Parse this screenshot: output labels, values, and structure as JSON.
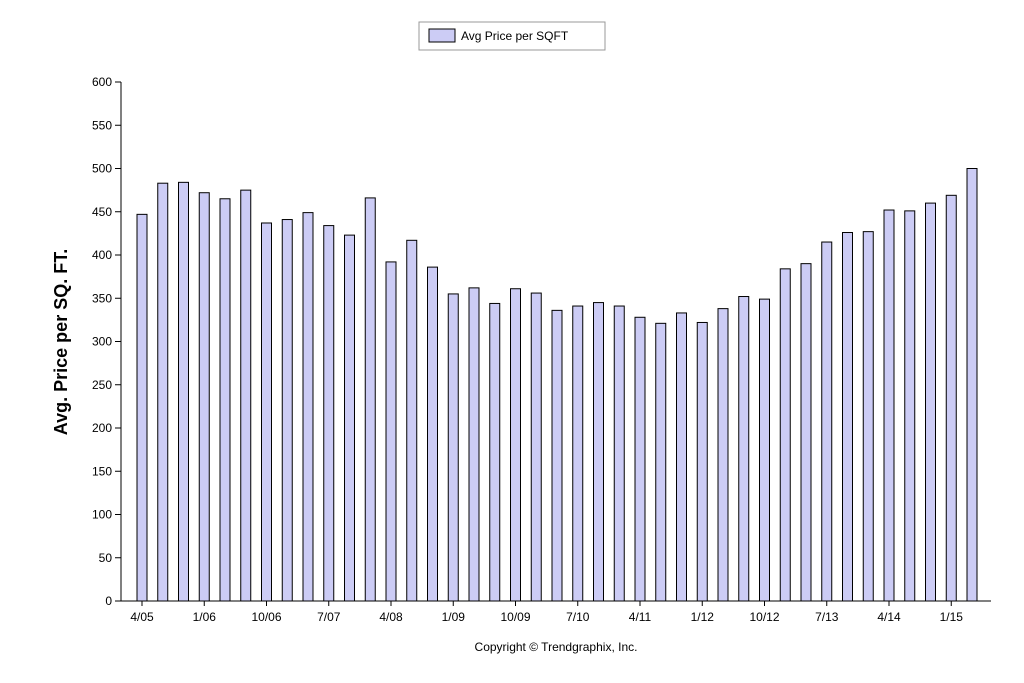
{
  "chart_data": {
    "type": "bar",
    "legend": [
      "Avg Price per SQFT"
    ],
    "legend_position": "top-center",
    "ylabel": "Avg. Price per SQ. FT.",
    "xlabel": "",
    "ylim": [
      0,
      600
    ],
    "yticks": [
      0,
      50,
      100,
      150,
      200,
      250,
      300,
      350,
      400,
      450,
      500,
      550,
      600
    ],
    "grid": false,
    "bar_color": "#ccccf5",
    "xtick_labels": [
      {
        "index": 0,
        "label": "4/05"
      },
      {
        "index": 3,
        "label": "1/06"
      },
      {
        "index": 6,
        "label": "10/06"
      },
      {
        "index": 9,
        "label": "7/07"
      },
      {
        "index": 12,
        "label": "4/08"
      },
      {
        "index": 15,
        "label": "1/09"
      },
      {
        "index": 18,
        "label": "10/09"
      },
      {
        "index": 21,
        "label": "7/10"
      },
      {
        "index": 24,
        "label": "4/11"
      },
      {
        "index": 27,
        "label": "1/12"
      },
      {
        "index": 30,
        "label": "10/12"
      },
      {
        "index": 33,
        "label": "7/13"
      },
      {
        "index": 36,
        "label": "4/14"
      },
      {
        "index": 39,
        "label": "1/15"
      }
    ],
    "categories": [
      "4/05",
      "7/05",
      "10/05",
      "1/06",
      "4/06",
      "7/06",
      "10/06",
      "1/07",
      "4/07",
      "7/07",
      "10/07",
      "1/08",
      "4/08",
      "7/08",
      "10/08",
      "1/09",
      "4/09",
      "7/09",
      "10/09",
      "1/10",
      "4/10",
      "7/10",
      "10/10",
      "1/11",
      "4/11",
      "7/11",
      "10/11",
      "1/12",
      "4/12",
      "7/12",
      "10/12",
      "1/13",
      "4/13",
      "7/13",
      "10/13",
      "1/14",
      "4/14",
      "7/14",
      "10/14",
      "1/15",
      "4/15"
    ],
    "series": [
      {
        "name": "Avg Price per SQFT",
        "values": [
          447,
          483,
          484,
          472,
          465,
          475,
          437,
          441,
          449,
          434,
          423,
          466,
          392,
          417,
          386,
          355,
          362,
          344,
          361,
          356,
          336,
          341,
          345,
          341,
          328,
          321,
          333,
          322,
          338,
          352,
          349,
          384,
          390,
          415,
          426,
          427,
          452,
          451,
          460,
          469,
          500
        ]
      }
    ]
  },
  "footer": {
    "copyright": "Copyright © Trendgraphix, Inc."
  }
}
